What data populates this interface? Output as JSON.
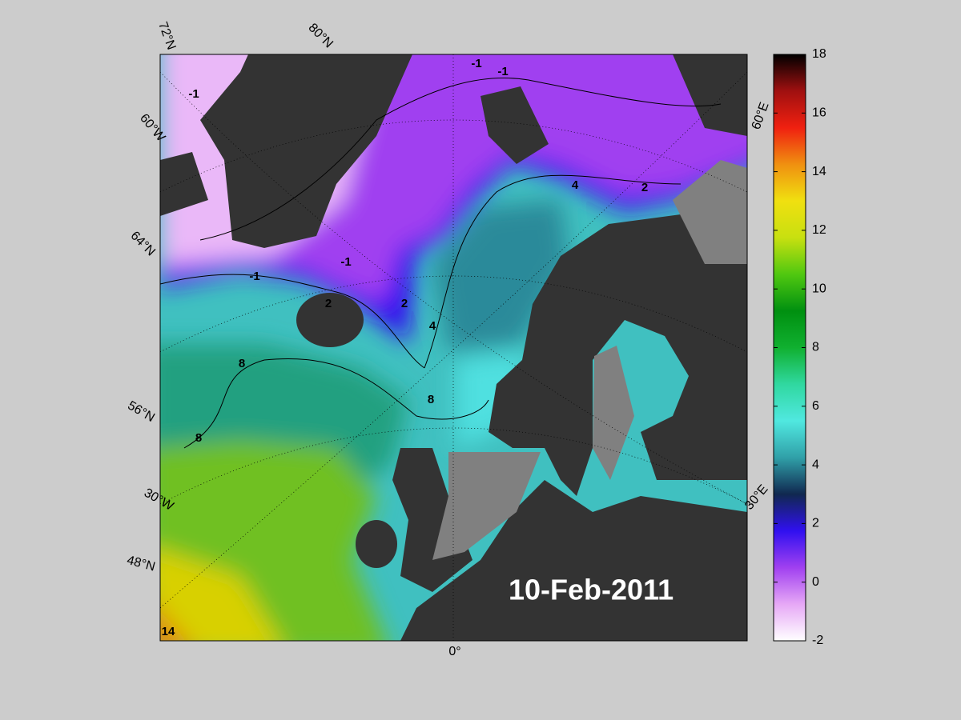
{
  "map": {
    "date": "10-Feb-2011",
    "grid_labels": [
      "72°N",
      "80°N",
      "60°W",
      "64°N",
      "56°N",
      "30°W",
      "48°N",
      "0°",
      "60°E",
      "30°E"
    ],
    "contour_labels": [
      -1,
      -1,
      -1,
      -1,
      -1,
      2,
      2,
      2,
      4,
      4,
      8,
      8,
      8,
      14
    ],
    "colorbar": {
      "lim": [
        -2,
        18
      ],
      "ticks": [
        -2,
        0,
        2,
        4,
        6,
        8,
        10,
        12,
        14,
        16,
        18
      ],
      "colors": [
        "#ffffff",
        "#e6a8f6",
        "#a040f0",
        "#3010f0",
        "#102850",
        "#30a0a8",
        "#50e8e0",
        "#30d8a0",
        "#10b030",
        "#009010",
        "#50c810",
        "#c8e010",
        "#f0e010",
        "#f09010",
        "#f02010",
        "#a01010",
        "#000000"
      ]
    }
  }
}
